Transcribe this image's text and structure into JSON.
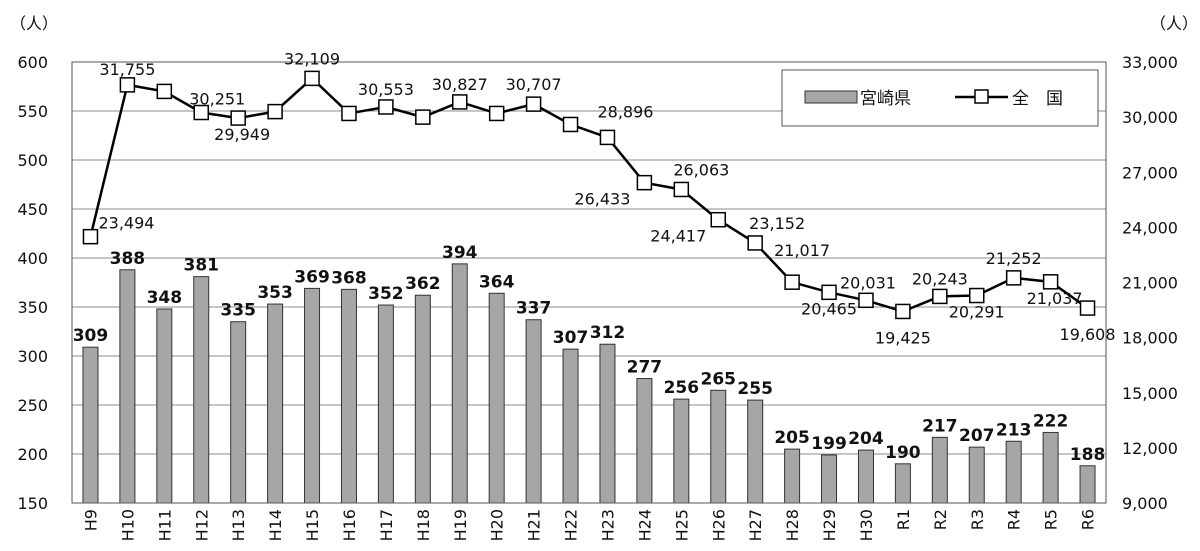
{
  "chart_data": {
    "type": "bar",
    "categories": [
      "H9",
      "H10",
      "H11",
      "H12",
      "H13",
      "H14",
      "H15",
      "H16",
      "H17",
      "H18",
      "H19",
      "H20",
      "H21",
      "H22",
      "H23",
      "H24",
      "H25",
      "H26",
      "H27",
      "H28",
      "H29",
      "H30",
      "R1",
      "R2",
      "R3",
      "R4",
      "R5",
      "R6"
    ],
    "series": [
      {
        "name": "宮崎県",
        "type": "bar",
        "axis": "left",
        "color": "#a6a6a6",
        "values": [
          309,
          388,
          348,
          381,
          335,
          353,
          369,
          368,
          352,
          362,
          394,
          364,
          337,
          307,
          312,
          277,
          256,
          265,
          255,
          205,
          199,
          204,
          190,
          217,
          207,
          213,
          222,
          188
        ]
      },
      {
        "name": "全　国",
        "type": "line",
        "axis": "right",
        "color": "#000000",
        "marker": "open-square",
        "values": [
          23494,
          31755,
          31400,
          30251,
          29949,
          30300,
          32109,
          30200,
          30553,
          30000,
          30827,
          30200,
          30707,
          29600,
          28896,
          26433,
          26063,
          24417,
          23152,
          21017,
          20465,
          20031,
          19425,
          20243,
          20291,
          21252,
          21037,
          19608
        ],
        "labels": [
          "23,494",
          "31,755",
          "",
          "30,251",
          "29,949",
          "",
          "32,109",
          "",
          "30,553",
          "",
          "30,827",
          "",
          "30,707",
          "",
          "28,896",
          "26,433",
          "26,063",
          "24,417",
          "23,152",
          "21,017",
          "20,465",
          "20,031",
          "19,425",
          "20,243",
          "20,291",
          "21,252",
          "21,037",
          "19,608"
        ]
      }
    ],
    "left_axis": {
      "unit": "（人）",
      "ylim": [
        150,
        600
      ],
      "ticks": [
        "150",
        "200",
        "250",
        "300",
        "350",
        "400",
        "450",
        "500",
        "550",
        "600"
      ]
    },
    "right_axis": {
      "unit": "（人）",
      "ylim": [
        9000,
        33000
      ],
      "ticks": [
        "9,000",
        "12,000",
        "15,000",
        "18,000",
        "21,000",
        "24,000",
        "27,000",
        "30,000",
        "33,000"
      ]
    },
    "legend": {
      "position": "top-right",
      "items": [
        "宮崎県",
        "全　国"
      ]
    },
    "grid": true
  }
}
